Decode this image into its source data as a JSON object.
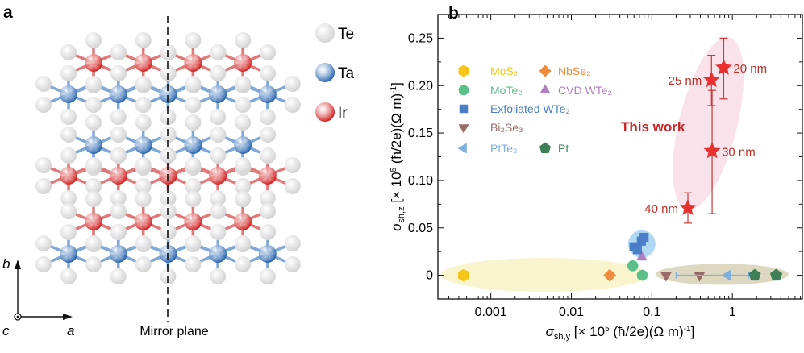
{
  "panel_a": {
    "label": "a",
    "legend": [
      {
        "element": "Te",
        "color": "#d4d4d4"
      },
      {
        "element": "Ta",
        "color": "#2a66b0"
      },
      {
        "element": "Ir",
        "color": "#d42424"
      }
    ],
    "mirror_plane_label": "Mirror plane",
    "axes": {
      "b": "b",
      "a": "a",
      "c": "c"
    }
  },
  "chart_data": {
    "panel_label": "b",
    "type": "scatter",
    "xscale": "log",
    "xlim": [
      0.00022,
      7.4
    ],
    "ylim": [
      -0.025,
      0.275
    ],
    "grid": false,
    "xticks": [
      {
        "v": 0.001,
        "label": "0.001"
      },
      {
        "v": 0.01,
        "label": "0.01"
      },
      {
        "v": 0.1,
        "label": "0.1"
      },
      {
        "v": 1,
        "label": "1"
      }
    ],
    "yticks": [
      {
        "v": 0,
        "label": "0"
      },
      {
        "v": 0.05,
        "label": "0.05"
      },
      {
        "v": 0.1,
        "label": "0.10"
      },
      {
        "v": 0.15,
        "label": "0.15"
      },
      {
        "v": 0.2,
        "label": "0.20"
      },
      {
        "v": 0.25,
        "label": "0.25"
      }
    ],
    "xlabel": {
      "sym": "σ",
      "sub": "sh,y",
      "pre": " [× 10",
      "sup": "5",
      "mid": " (ħ/2e)(Ω m)",
      "sup2": "-1",
      "post": "]"
    },
    "ylabel": {
      "sym": "σ",
      "sub": "sh,z",
      "pre": " [× 10",
      "sup": "5",
      "mid": " (ħ/2e)(Ω m)",
      "sup2": "-1",
      "post": "]"
    },
    "legend_placement": "top-left",
    "series": [
      {
        "name": "MoS₂",
        "marker": "hexagon",
        "color": "#f5c518",
        "points": [
          [
            0.00046,
            0
          ]
        ]
      },
      {
        "name": "NbSe₂",
        "marker": "diamond",
        "color": "#f08a3c",
        "points": [
          [
            0.03,
            0
          ]
        ]
      },
      {
        "name": "MoTe₂",
        "marker": "circle",
        "color": "#5cbf8a",
        "points": [
          [
            0.058,
            0.01
          ],
          [
            0.076,
            0
          ]
        ]
      },
      {
        "name": "CVD WTe₂",
        "marker": "triangle-up",
        "color": "#b07fc0",
        "points": [
          [
            0.075,
            0.019
          ]
        ]
      },
      {
        "name": "Exfoliated WTe₂",
        "marker": "square",
        "color": "#4a7fc8",
        "points": [
          [
            0.06,
            0.03
          ],
          [
            0.066,
            0.027
          ],
          [
            0.074,
            0.036
          ],
          [
            0.08,
            0.04
          ]
        ]
      },
      {
        "name": "Bi₂Se₃",
        "marker": "triangle-down",
        "color": "#9a6a6a",
        "points": [
          [
            0.15,
            0
          ],
          [
            0.39,
            0
          ]
        ]
      },
      {
        "name": "PtTe₂",
        "marker": "triangle-left",
        "color": "#7fb0e0",
        "points": [
          [
            0.87,
            0
          ]
        ],
        "xerr": [
          [
            0.2,
            1.6
          ]
        ]
      },
      {
        "name": "Pt",
        "marker": "pentagon",
        "color": "#3f7f55",
        "points": [
          [
            1.9,
            0
          ],
          [
            3.5,
            0
          ]
        ]
      }
    ],
    "this_work": {
      "label": "This work",
      "color": "#e8302f",
      "points": [
        {
          "x": 0.78,
          "y": 0.219,
          "ylo": 0.186,
          "yhi": 0.25,
          "label": "20 nm",
          "side": "right"
        },
        {
          "x": 0.55,
          "y": 0.206,
          "ylo": 0.179,
          "yhi": 0.232,
          "label": "25 nm",
          "side": "left"
        },
        {
          "x": 0.56,
          "y": 0.131,
          "ylo": 0.065,
          "yhi": 0.195,
          "label": "30 nm",
          "side": "right"
        },
        {
          "x": 0.28,
          "y": 0.071,
          "ylo": 0.055,
          "yhi": 0.087,
          "label": "40 nm",
          "side": "left"
        }
      ]
    },
    "highlight_colors": {
      "yellow": "#f8f2c4",
      "olive": "#d9d4b8",
      "pink": "#f9dde6",
      "blue": "#a8d4f2"
    }
  }
}
